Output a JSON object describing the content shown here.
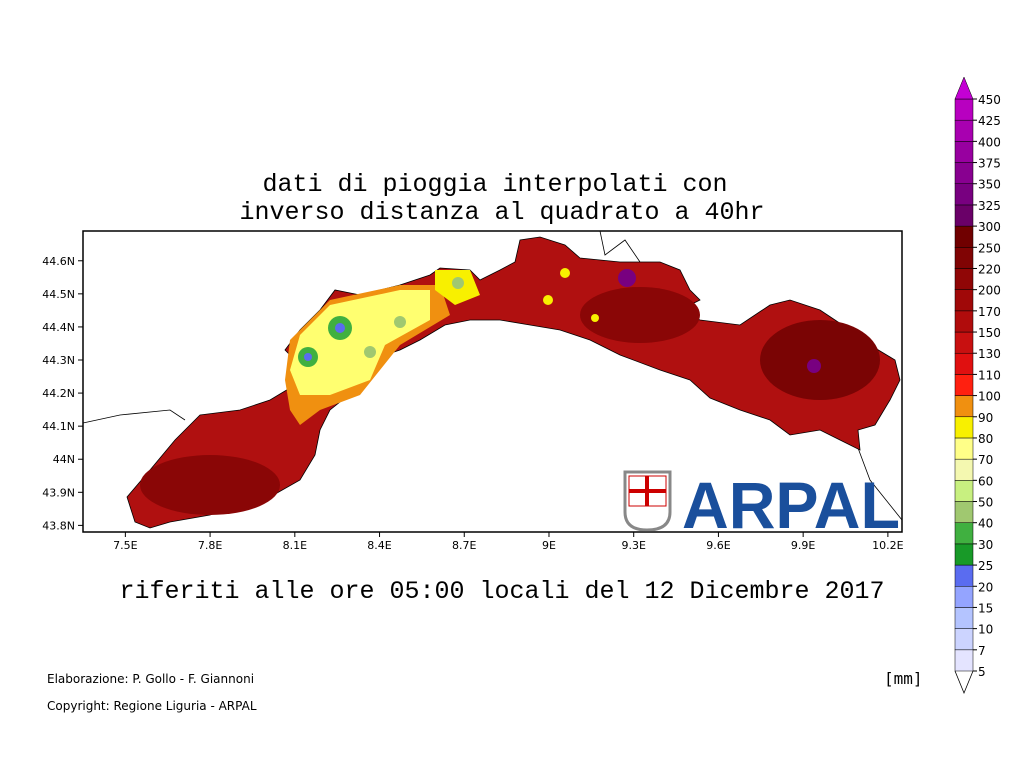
{
  "title": [
    "dati di pioggia interpolati con",
    "inverso distanza al quadrato a 40hr"
  ],
  "subtitle": "riferiti alle ore 05:00 locali del 12 Dicembre 2017",
  "footer": [
    "Elaborazione: P. Gollo - F. Giannoni",
    "Copyright: Regione Liguria - ARPAL"
  ],
  "logo": {
    "text": "ARPAL"
  },
  "map": {
    "xlim": [
      7.35,
      10.25
    ],
    "ylim": [
      43.78,
      44.69
    ],
    "xticks": [
      {
        "value": 7.5,
        "label": "7.5E"
      },
      {
        "value": 7.8,
        "label": "7.8E"
      },
      {
        "value": 8.1,
        "label": "8.1E"
      },
      {
        "value": 8.4,
        "label": "8.4E"
      },
      {
        "value": 8.7,
        "label": "8.7E"
      },
      {
        "value": 9,
        "label": "9E"
      },
      {
        "value": 9.3,
        "label": "9.3E"
      },
      {
        "value": 9.6,
        "label": "9.6E"
      },
      {
        "value": 9.9,
        "label": "9.9E"
      },
      {
        "value": 10.2,
        "label": "10.2E"
      }
    ],
    "yticks": [
      {
        "value": 43.8,
        "label": "43.8N"
      },
      {
        "value": 43.9,
        "label": "43.9N"
      },
      {
        "value": 44,
        "label": "44N"
      },
      {
        "value": 44.1,
        "label": "44.1N"
      },
      {
        "value": 44.2,
        "label": "44.2N"
      },
      {
        "value": 44.3,
        "label": "44.3N"
      },
      {
        "value": 44.4,
        "label": "44.4N"
      },
      {
        "value": 44.5,
        "label": "44.5N"
      },
      {
        "value": 44.6,
        "label": "44.6N"
      }
    ]
  },
  "colorbar": {
    "unit": "[mm]",
    "levels": [
      5,
      7,
      10,
      15,
      20,
      25,
      30,
      40,
      50,
      60,
      70,
      80,
      90,
      100,
      110,
      130,
      150,
      170,
      200,
      220,
      250,
      300,
      325,
      350,
      375,
      400,
      425,
      450
    ],
    "colors": [
      "#e4e4ff",
      "#ccd4ff",
      "#b4c4ff",
      "#94a4ff",
      "#5a6cf0",
      "#189a28",
      "#40b040",
      "#a0c870",
      "#c8f080",
      "#f4f8b0",
      "#ffff88",
      "#f8f000",
      "#f09010",
      "#ff2010",
      "#e01010",
      "#c81010",
      "#b00c0c",
      "#a00808",
      "#900606",
      "#800404",
      "#700000",
      "#6a0068",
      "#780080",
      "#880090",
      "#9800a0",
      "#a800b0",
      "#b800c0"
    ],
    "over_color": "#c400d4"
  }
}
